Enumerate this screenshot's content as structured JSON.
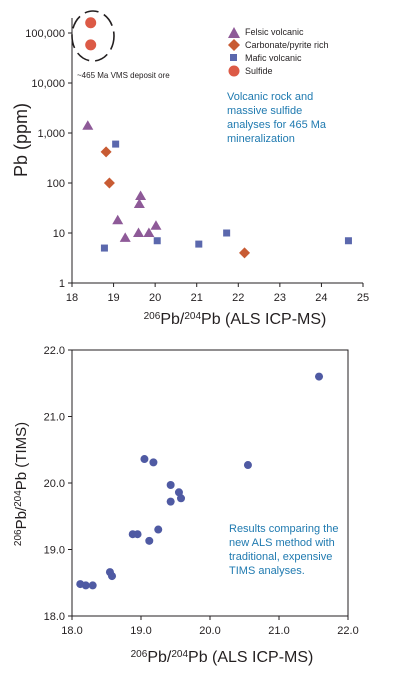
{
  "colors": {
    "felsic": "#8e5a98",
    "carbonate": "#c85b33",
    "mafic": "#5b68ad",
    "sulfide": "#dc5a46",
    "tims": "#4f5aa3",
    "annotation": "#1f7ab0",
    "axis": "#231f20"
  },
  "chart_data": [
    {
      "type": "scatter",
      "xlabel": "206Pb/204Pb  (ALS ICP-MS)",
      "ylabel": "Pb (ppm)",
      "xlim": [
        18,
        25
      ],
      "ylim": [
        1,
        100000
      ],
      "yscale": "log",
      "x_ticks": [
        "18",
        "19",
        "20",
        "21",
        "22",
        "23",
        "24",
        "25"
      ],
      "y_ticks": [
        "100,000",
        "10,000",
        "1,000",
        "100",
        "10",
        "1"
      ],
      "legend_position": "top-right",
      "series": [
        {
          "name": "Felsic volcanic",
          "marker": "triangle",
          "color": "#8e5a98",
          "points": [
            [
              18.38,
              1400
            ],
            [
              19.1,
              18
            ],
            [
              19.28,
              8
            ],
            [
              19.6,
              10
            ],
            [
              19.62,
              38
            ],
            [
              19.65,
              55
            ],
            [
              19.85,
              10
            ],
            [
              20.02,
              14
            ]
          ]
        },
        {
          "name": "Carbonate/pyrite rich",
          "marker": "diamond",
          "color": "#c85b33",
          "points": [
            [
              18.82,
              420
            ],
            [
              18.9,
              100
            ],
            [
              22.15,
              4
            ]
          ]
        },
        {
          "name": "Mafic volcanic",
          "marker": "square",
          "color": "#5b68ad",
          "points": [
            [
              19.05,
              600
            ],
            [
              18.78,
              5
            ],
            [
              20.05,
              7
            ],
            [
              21.05,
              6
            ],
            [
              21.72,
              10
            ],
            [
              24.65,
              7
            ]
          ]
        },
        {
          "name": "Sulfide",
          "marker": "circle",
          "color": "#dc5a46",
          "points": [
            [
              18.45,
              160000
            ],
            [
              18.45,
              58000
            ]
          ]
        }
      ],
      "annotations": {
        "vms_label": "~465 Ma VMS deposit ore",
        "note": [
          "Volcanic rock and",
          "massive sulfide",
          "analyses for 465 Ma",
          "mineralization"
        ]
      }
    },
    {
      "type": "scatter",
      "xlabel": "206Pb/204Pb  (ALS ICP-MS)",
      "ylabel": "206Pb/204Pb  (TIMS)",
      "xlim": [
        18.0,
        22.0
      ],
      "ylim": [
        18.0,
        22.0
      ],
      "x_ticks": [
        "18.0",
        "19.0",
        "20.0",
        "21.0",
        "22.0"
      ],
      "y_ticks": [
        "18.0",
        "19.0",
        "20.0",
        "21.0",
        "22.0"
      ],
      "series": [
        {
          "color": "#4f5aa3",
          "points": [
            [
              18.12,
              18.48
            ],
            [
              18.2,
              18.46
            ],
            [
              18.3,
              18.46
            ],
            [
              18.55,
              18.66
            ],
            [
              18.58,
              18.6
            ],
            [
              18.88,
              19.23
            ],
            [
              18.95,
              19.23
            ],
            [
              19.05,
              20.36
            ],
            [
              19.12,
              19.13
            ],
            [
              19.18,
              20.31
            ],
            [
              19.25,
              19.3
            ],
            [
              19.43,
              19.97
            ],
            [
              19.43,
              19.72
            ],
            [
              19.55,
              19.86
            ],
            [
              19.58,
              19.77
            ],
            [
              20.55,
              20.27
            ],
            [
              21.58,
              21.6
            ]
          ]
        }
      ],
      "annotations": {
        "note": [
          "Results comparing the",
          "new ALS method with",
          "traditional, expensive",
          "TIMS analyses."
        ]
      }
    }
  ]
}
